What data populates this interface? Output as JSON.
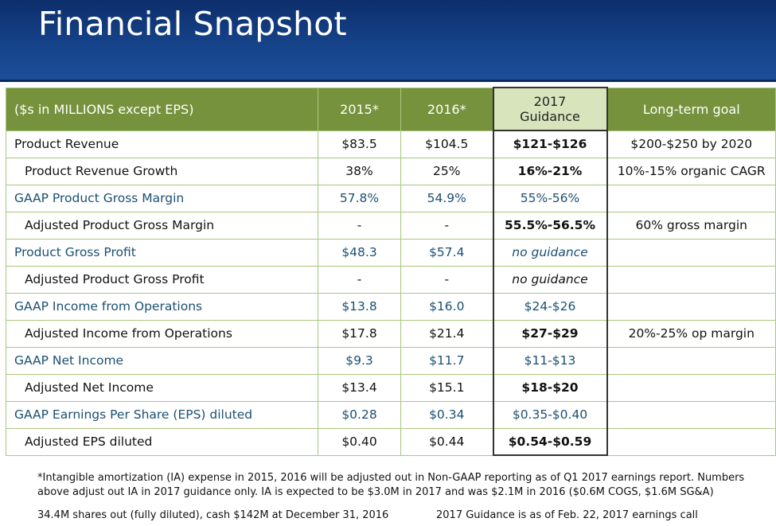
{
  "title": "Financial Snapshot",
  "table": {
    "headers": [
      "($s in MILLIONS except EPS)",
      "2015*",
      "2016*",
      "2017\nGuidance",
      "Long-term goal"
    ],
    "guidance_header": {
      "line1": "2017",
      "line2": "Guidance"
    },
    "rows": [
      {
        "label": "Product Revenue",
        "y2015": "$83.5",
        "y2016": "$104.5",
        "g2017": "$121-$126",
        "goal": "$200-$250 by 2020",
        "type": "main",
        "italic": false
      },
      {
        "label": "Product Revenue Growth",
        "y2015": "38%",
        "y2016": "25%",
        "g2017": "16%-21%",
        "goal": "10%-15% organic CAGR",
        "type": "sub",
        "italic": false
      },
      {
        "label": "GAAP Product Gross Margin",
        "y2015": "57.8%",
        "y2016": "54.9%",
        "g2017": "55%-56%",
        "goal": "",
        "type": "gaap",
        "italic": false
      },
      {
        "label": "Adjusted Product Gross Margin",
        "y2015": "-",
        "y2016": "-",
        "g2017": "55.5%-56.5%",
        "goal": "60% gross margin",
        "type": "sub",
        "italic": false
      },
      {
        "label": "Product Gross Profit",
        "y2015": "$48.3",
        "y2016": "$57.4",
        "g2017": "no guidance",
        "goal": "",
        "type": "gaap",
        "italic": true
      },
      {
        "label": "Adjusted Product Gross Profit",
        "y2015": "-",
        "y2016": "-",
        "g2017": "no guidance",
        "goal": "",
        "type": "sub",
        "italic": true
      },
      {
        "label": "GAAP Income from Operations",
        "y2015": "$13.8",
        "y2016": "$16.0",
        "g2017": "$24-$26",
        "goal": "",
        "type": "gaap",
        "italic": false
      },
      {
        "label": "Adjusted Income from Operations",
        "y2015": "$17.8",
        "y2016": "$21.4",
        "g2017": "$27-$29",
        "goal": "20%-25% op margin",
        "type": "sub",
        "italic": false
      },
      {
        "label": "GAAP Net Income",
        "y2015": "$9.3",
        "y2016": "$11.7",
        "g2017": "$11-$13",
        "goal": "",
        "type": "gaap",
        "italic": false
      },
      {
        "label": "Adjusted Net Income",
        "y2015": "$13.4",
        "y2016": "$15.1",
        "g2017": "$18-$20",
        "goal": "",
        "type": "sub",
        "italic": false
      },
      {
        "label": "GAAP Earnings Per Share (EPS) diluted",
        "y2015": "$0.28",
        "y2016": "$0.34",
        "g2017": "$0.35-$0.40",
        "goal": "",
        "type": "gaap",
        "italic": false
      },
      {
        "label": "Adjusted EPS diluted",
        "y2015": "$0.40",
        "y2016": "$0.44",
        "g2017": "$0.54-$0.59",
        "goal": "",
        "type": "sub",
        "italic": false
      }
    ]
  },
  "footnote": "*Intangible amortization (IA) expense in 2015, 2016  will be adjusted out in Non-GAAP reporting as of Q1 2017 earnings report. Numbers above adjust out IA in 2017 guidance only. IA is expected to be $3.0M in 2017 and was $2.1M in 2016 ($0.6M COGS, $1.6M SG&A)",
  "bottom_left": "34.4M shares out (fully diluted), cash $142M at December 31, 2016",
  "bottom_right": "2017 Guidance is as of Feb. 22, 2017 earnings call",
  "colors": {
    "header_bg": "#16438a",
    "table_header": "#76923c",
    "guidance_header": "#d7e4bc",
    "gaap_text": "#1b4f72"
  }
}
